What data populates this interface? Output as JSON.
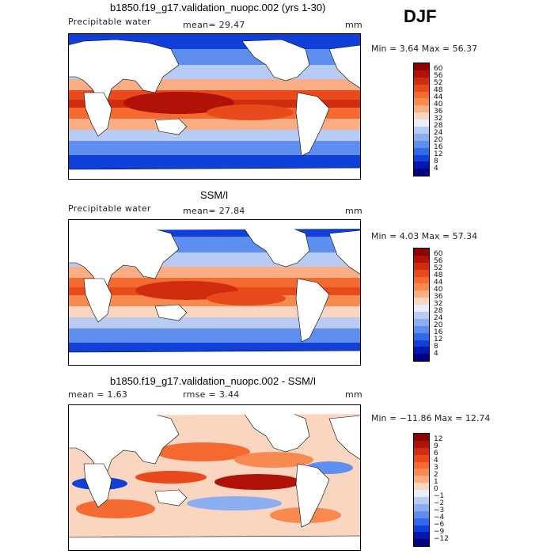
{
  "season": "DJF",
  "units": "mm",
  "panels": [
    {
      "title": "b1850.f19_g17.validation_nuopc.002 (yrs 1-30)",
      "variable": "Precipitable water",
      "stat_left": "mean=  29.47",
      "units": "mm",
      "minmax": "Min =    3.64 Max =  56.37",
      "levels": [
        "60",
        "56",
        "52",
        "48",
        "44",
        "40",
        "36",
        "32",
        "28",
        "24",
        "20",
        "16",
        "12",
        "8",
        "4"
      ],
      "colors": [
        "#8b0000",
        "#b01208",
        "#d02c10",
        "#e84a1c",
        "#f46a30",
        "#f88a50",
        "#f9ae86",
        "#fad6c0",
        "#e8eefa",
        "#b8cbf4",
        "#8caef0",
        "#5e8ef0",
        "#3268ea",
        "#1040d8",
        "#0018b0",
        "#000080"
      ]
    },
    {
      "title": "SSM/I",
      "variable": "Precipitable water",
      "stat_left": "mean=  27.84",
      "units": "mm",
      "minmax": "Min =    4.03 Max =  57.34",
      "levels": [
        "60",
        "56",
        "52",
        "48",
        "44",
        "40",
        "36",
        "32",
        "28",
        "24",
        "20",
        "16",
        "12",
        "8",
        "4"
      ],
      "colors": [
        "#8b0000",
        "#b01208",
        "#d02c10",
        "#e84a1c",
        "#f46a30",
        "#f88a50",
        "#f9ae86",
        "#fad6c0",
        "#e8eefa",
        "#b8cbf4",
        "#8caef0",
        "#5e8ef0",
        "#3268ea",
        "#1040d8",
        "#0018b0",
        "#000080"
      ]
    },
    {
      "title": "b1850.f19_g17.validation_nuopc.002 - SSM/I",
      "stat_left": "mean =    1.63",
      "stat_mid": "rmse =    3.44",
      "units": "mm",
      "minmax": "Min = −11.86 Max =  12.74",
      "levels": [
        "12",
        "9",
        "6",
        "4",
        "3",
        "2",
        "1",
        "0",
        "−1",
        "−2",
        "−3",
        "−4",
        "−6",
        "−9",
        "−12"
      ],
      "colors": [
        "#8b0000",
        "#b01208",
        "#d02c10",
        "#e84a1c",
        "#f46a30",
        "#f88a50",
        "#f9ae86",
        "#fad6c0",
        "#e8eefa",
        "#b8cbf4",
        "#8caef0",
        "#5e8ef0",
        "#3268ea",
        "#1040d8",
        "#0018b0",
        "#000080"
      ]
    }
  ]
}
